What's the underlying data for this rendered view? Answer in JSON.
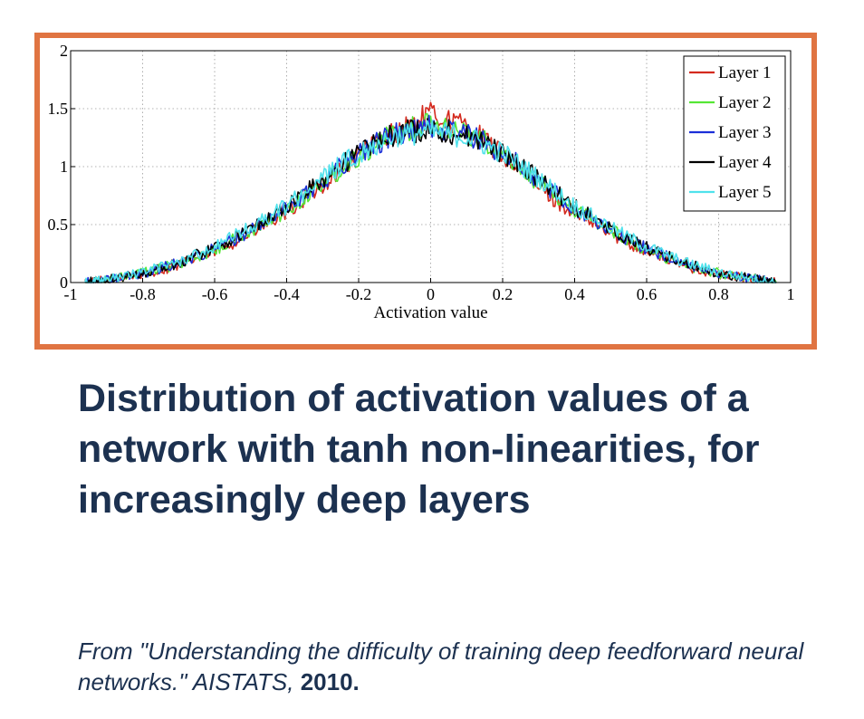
{
  "chart_data": {
    "type": "line",
    "title": "",
    "xlabel": "Activation value",
    "ylabel": "",
    "xlim": [
      -1,
      1
    ],
    "ylim": [
      0,
      2
    ],
    "x_ticks": [
      "-1",
      "-0.8",
      "-0.6",
      "-0.4",
      "-0.2",
      "0",
      "0.2",
      "0.4",
      "0.6",
      "0.8",
      "1"
    ],
    "y_ticks": [
      "0",
      "0.5",
      "1",
      "1.5",
      "2"
    ],
    "grid": true,
    "legend_position": "top-right",
    "x": [
      -0.96,
      -0.9,
      -0.8,
      -0.7,
      -0.6,
      -0.5,
      -0.4,
      -0.3,
      -0.2,
      -0.1,
      0,
      0.1,
      0.2,
      0.3,
      0.4,
      0.5,
      0.6,
      0.7,
      0.8,
      0.9,
      0.96
    ],
    "series": [
      {
        "name": "Layer 1",
        "color": "#d42a1e",
        "values": [
          0,
          0.02,
          0.07,
          0.15,
          0.27,
          0.42,
          0.6,
          0.85,
          1.1,
          1.3,
          1.45,
          1.35,
          1.1,
          0.82,
          0.6,
          0.42,
          0.27,
          0.15,
          0.07,
          0.03,
          0
        ]
      },
      {
        "name": "Layer 2",
        "color": "#55e635",
        "values": [
          0,
          0.02,
          0.08,
          0.16,
          0.28,
          0.44,
          0.62,
          0.86,
          1.1,
          1.28,
          1.38,
          1.3,
          1.12,
          0.86,
          0.63,
          0.45,
          0.28,
          0.16,
          0.08,
          0.03,
          0
        ]
      },
      {
        "name": "Layer 3",
        "color": "#1b2fd8",
        "values": [
          0,
          0.02,
          0.08,
          0.17,
          0.29,
          0.45,
          0.64,
          0.88,
          1.12,
          1.28,
          1.35,
          1.28,
          1.12,
          0.88,
          0.64,
          0.45,
          0.29,
          0.17,
          0.08,
          0.03,
          0
        ]
      },
      {
        "name": "Layer 4",
        "color": "#000000",
        "values": [
          0,
          0.02,
          0.08,
          0.17,
          0.3,
          0.46,
          0.65,
          0.89,
          1.12,
          1.28,
          1.33,
          1.27,
          1.12,
          0.89,
          0.65,
          0.46,
          0.3,
          0.17,
          0.08,
          0.03,
          0
        ]
      },
      {
        "name": "Layer 5",
        "color": "#4fe2ec",
        "values": [
          0,
          0.02,
          0.09,
          0.18,
          0.31,
          0.47,
          0.66,
          0.9,
          1.12,
          1.27,
          1.3,
          1.26,
          1.12,
          0.9,
          0.66,
          0.47,
          0.31,
          0.18,
          0.09,
          0.03,
          0
        ]
      }
    ]
  },
  "caption": "Distribution of activation values of a network with tanh non-linearities, for increasingly deep layers",
  "citation": {
    "text": "From \"Understanding the difficulty of training deep feedforward neural networks.\" AISTATS, ",
    "year": "2010."
  },
  "colors": {
    "frame_border": "#e07442",
    "caption_text": "#1c3150"
  }
}
